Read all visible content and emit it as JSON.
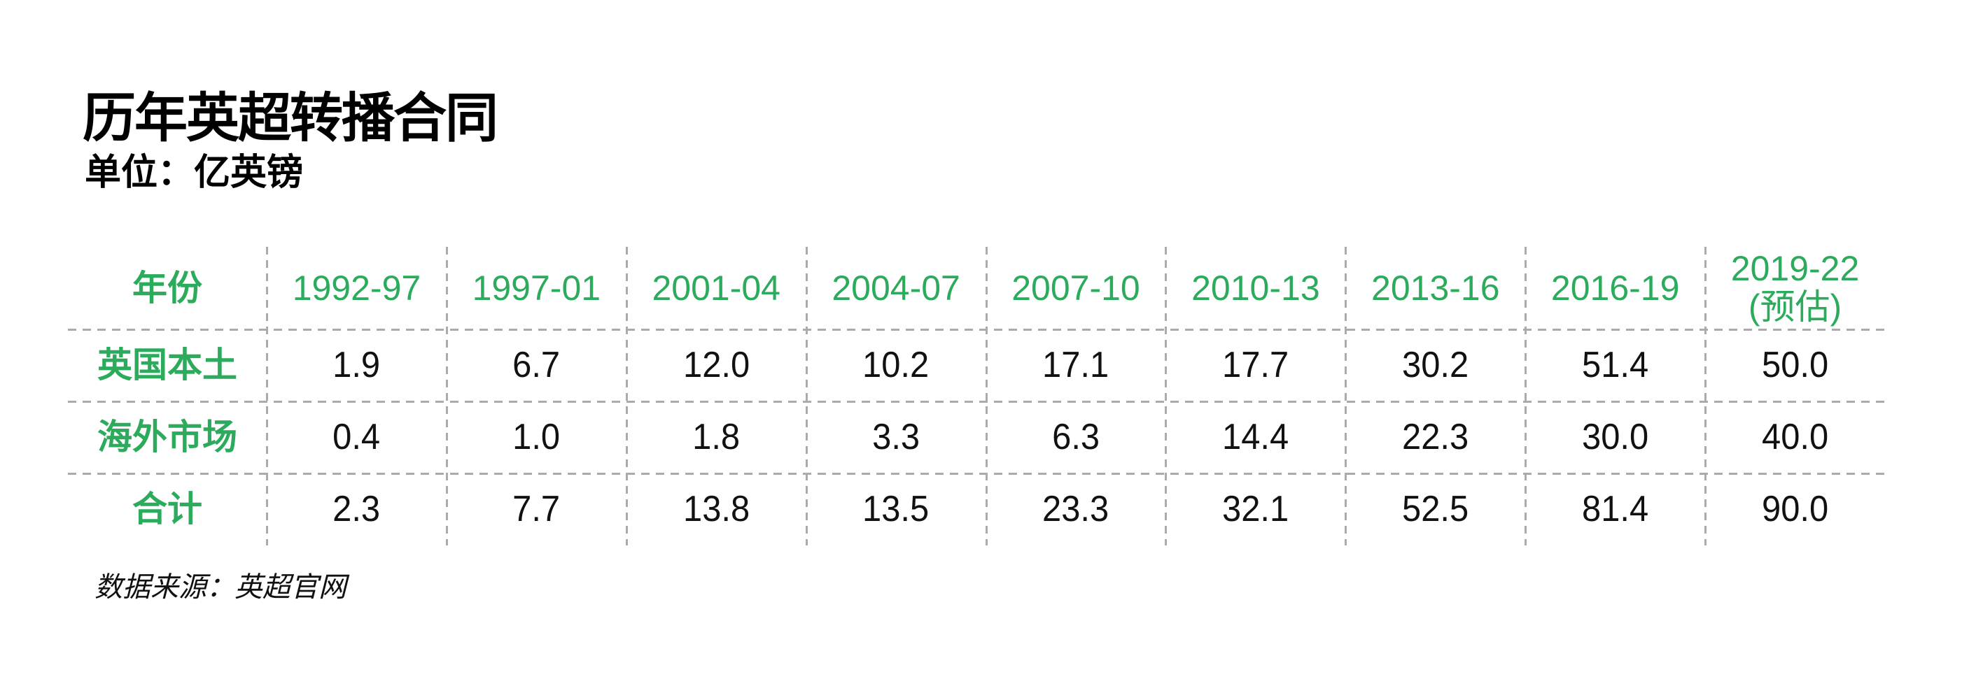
{
  "colors": {
    "accent_green": "#2BAB5B",
    "grid_line": "#ABABAB",
    "text": "#111111",
    "background": "#FFFFFF"
  },
  "chart_data": {
    "type": "table",
    "title": "历年英超转播合同",
    "unit_label": "单位：亿英镑",
    "corner_header": "年份",
    "columns": [
      "1992-97",
      "1997-01",
      "2001-04",
      "2004-07",
      "2007-10",
      "2010-13",
      "2013-16",
      "2016-19",
      "2019-22"
    ],
    "last_column_note": "(预估)",
    "rows": [
      {
        "label": "英国本土",
        "values": [
          "1.9",
          "6.7",
          "12.0",
          "10.2",
          "17.1",
          "17.7",
          "30.2",
          "51.4",
          "50.0"
        ]
      },
      {
        "label": "海外市场",
        "values": [
          "0.4",
          "1.0",
          "1.8",
          "3.3",
          "6.3",
          "14.4",
          "22.3",
          "30.0",
          "40.0"
        ]
      },
      {
        "label": "合计",
        "values": [
          "2.3",
          "7.7",
          "13.8",
          "13.5",
          "23.3",
          "32.1",
          "52.5",
          "81.4",
          "90.0"
        ]
      }
    ],
    "source": "数据来源：英超官网",
    "legend_position": "none",
    "grid": "dashed-internal"
  }
}
